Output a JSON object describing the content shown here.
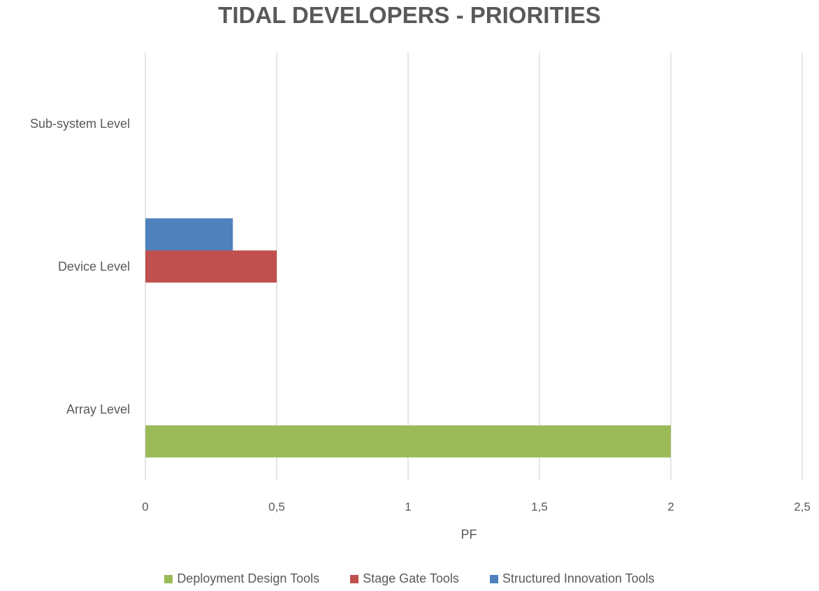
{
  "chart_data": {
    "type": "bar",
    "orientation": "horizontal",
    "title": "TIDAL DEVELOPERS - PRIORITIES",
    "xlabel": "PF",
    "ylabel": "",
    "categories": [
      "Array Level",
      "Device Level",
      "Sub-system Level"
    ],
    "series": [
      {
        "name": "Deployment Design Tools",
        "color": "#9BBB59",
        "values": [
          2,
          0,
          0
        ]
      },
      {
        "name": "Stage Gate Tools",
        "color": "#C0504D",
        "values": [
          0,
          0.5,
          0
        ]
      },
      {
        "name": "Structured Innovation Tools",
        "color": "#4F81BD",
        "values": [
          0,
          0.333,
          0
        ]
      }
    ],
    "xlim": [
      0,
      2.5
    ],
    "xticks": [
      0,
      0.5,
      1,
      1.5,
      2,
      2.5
    ],
    "xtick_labels": [
      "0",
      "0,5",
      "1",
      "1,5",
      "2",
      "2,5"
    ],
    "grid": true,
    "legend_position": "bottom"
  }
}
